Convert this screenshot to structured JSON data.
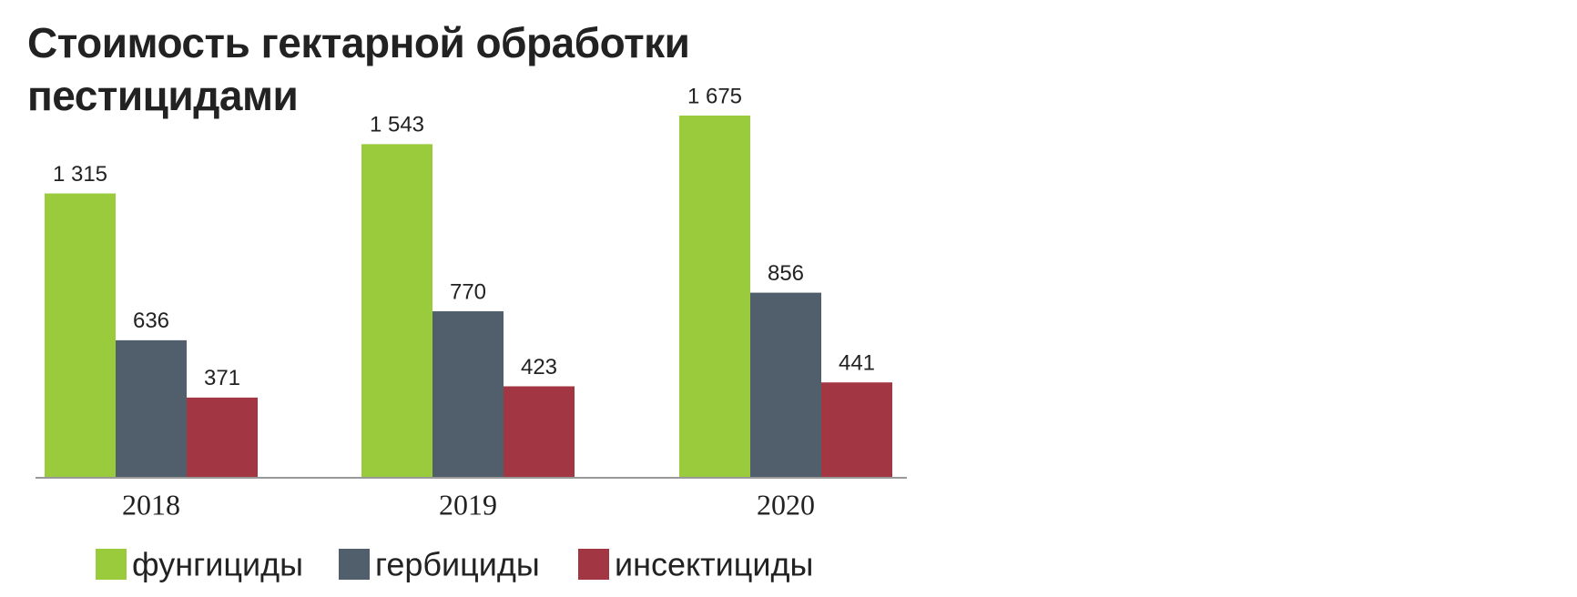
{
  "chart_data": {
    "type": "bar",
    "title": "Стоимость гектарной обработки пестицидами",
    "categories": [
      "2018",
      "2019",
      "2020"
    ],
    "series": [
      {
        "name": "фунгициды",
        "color": "#9acb3c",
        "values": [
          1315,
          1543,
          1675
        ],
        "value_labels": [
          "1 315",
          "1 543",
          "1 675"
        ]
      },
      {
        "name": "гербициды",
        "color": "#515f6d",
        "values": [
          636,
          770,
          856
        ]
      },
      {
        "name": "инсектициды",
        "color": "#a23642",
        "values": [
          371,
          423,
          441
        ]
      }
    ]
  }
}
